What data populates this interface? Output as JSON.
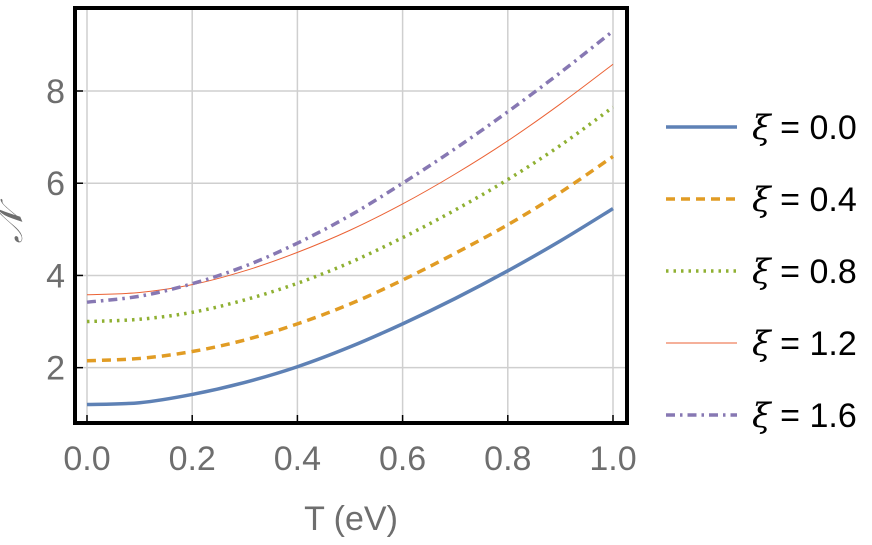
{
  "chart_data": {
    "type": "line",
    "title": "",
    "xlabel": "T (eV)",
    "ylabel": "𝒩",
    "xlim": [
      0.0,
      1.0
    ],
    "ylim": [
      0.8,
      9.8
    ],
    "x_ticks": [
      0.0,
      0.2,
      0.4,
      0.6,
      0.8,
      1.0
    ],
    "x_tick_labels": [
      "0.0",
      "0.2",
      "0.4",
      "0.6",
      "0.8",
      "1.0"
    ],
    "y_ticks": [
      2,
      4,
      6,
      8
    ],
    "y_tick_labels": [
      "2",
      "4",
      "6",
      "8"
    ],
    "grid": true,
    "legend_position": "right",
    "x": [
      0.0,
      0.1,
      0.2,
      0.3,
      0.4,
      0.5,
      0.6,
      0.7,
      0.8,
      0.9,
      1.0
    ],
    "series": [
      {
        "name": "ξ = 0.0",
        "symbol": "ξ",
        "value_label": " = 0.0",
        "color": "#5e81b5",
        "style": "solid",
        "values": [
          1.2,
          1.24,
          1.42,
          1.68,
          2.02,
          2.45,
          2.95,
          3.5,
          4.1,
          4.75,
          5.45
        ]
      },
      {
        "name": "ξ = 0.4",
        "symbol": "ξ",
        "value_label": " = 0.4",
        "color": "#e19c24",
        "style": "dashed",
        "values": [
          2.15,
          2.2,
          2.35,
          2.6,
          2.95,
          3.38,
          3.9,
          4.48,
          5.1,
          5.8,
          6.58
        ]
      },
      {
        "name": "ξ = 0.8",
        "symbol": "ξ",
        "value_label": " = 0.8",
        "color": "#8fb032",
        "style": "dotted",
        "values": [
          3.0,
          3.05,
          3.2,
          3.47,
          3.83,
          4.28,
          4.82,
          5.42,
          6.08,
          6.82,
          7.65
        ]
      },
      {
        "name": "ξ = 1.2",
        "symbol": "ξ",
        "value_label": " = 1.2",
        "color": "#eb6235",
        "style": "thin",
        "values": [
          3.58,
          3.63,
          3.8,
          4.1,
          4.5,
          4.98,
          5.55,
          6.2,
          6.92,
          7.72,
          8.58
        ]
      },
      {
        "name": "ξ = 1.6",
        "symbol": "ξ",
        "value_label": " = 1.6",
        "color": "#8778b3",
        "style": "dashdot",
        "values": [
          3.42,
          3.55,
          3.82,
          4.2,
          4.7,
          5.3,
          6.0,
          6.75,
          7.55,
          8.4,
          9.3
        ]
      }
    ]
  }
}
